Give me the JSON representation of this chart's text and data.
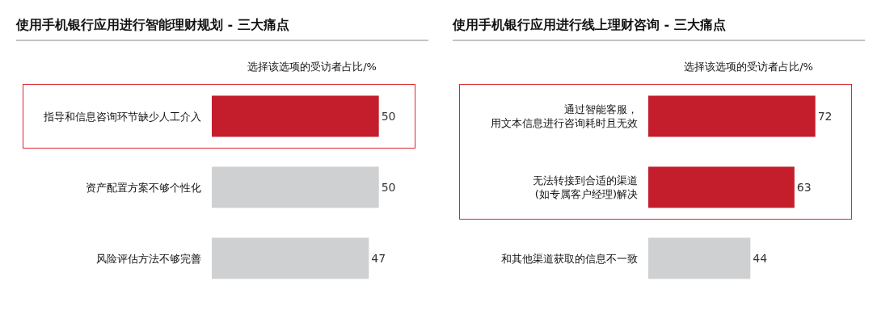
{
  "chart_data": [
    {
      "type": "bar",
      "orientation": "horizontal",
      "title": "使用手机银行应用进行智能理财规划 - 三大痛点",
      "xlabel": "选择该选项的受访者占比/%",
      "categories": [
        "指导和信息咨询环节缺少人工介入",
        "资产配置方案不够个性化",
        "风险评估方法不够完善"
      ],
      "values": [
        50,
        50,
        47
      ],
      "colors": [
        "#c41e2d",
        "#cfd0d2",
        "#cfd0d2"
      ],
      "data_labels": true,
      "tick_labels": "y",
      "grid": false,
      "legend": false
    },
    {
      "type": "bar",
      "orientation": "horizontal",
      "title": "使用手机银行应用进行线上理财咨询 - 三大痛点",
      "xlabel": "选择该选项的受访者占比/%",
      "categories": [
        "通过智能客服，用文本信息进行咨询耗时且无效",
        "无法转接到合适的渠道(如专属客户经理)解决",
        "和其他渠道获取的信息不一致"
      ],
      "values": [
        72,
        63,
        44
      ],
      "colors": [
        "#c41e2d",
        "#c41e2d",
        "#cfd0d2"
      ],
      "data_labels": true,
      "tick_labels": "y",
      "grid": false,
      "legend": false
    }
  ]
}
